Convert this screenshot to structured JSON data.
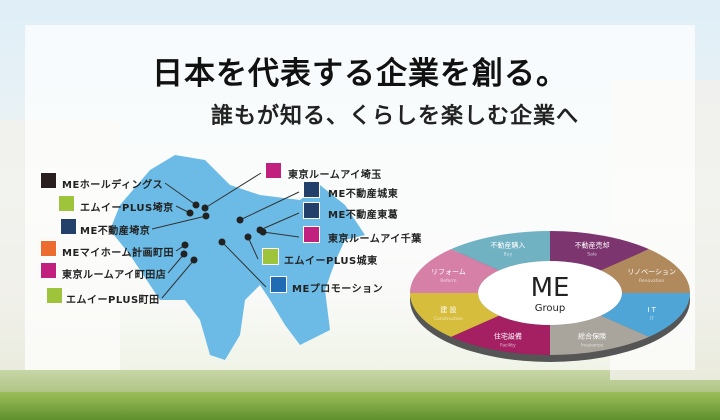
{
  "headline": "日本を代表する企業を創る。",
  "subheadline": "誰もが知る、くらしを楽しむ企業へ",
  "companies": [
    {
      "name": "MEホールディングス",
      "logo_color": "#2a1f1f"
    },
    {
      "name": "エムイーPLUS埼京",
      "logo_color": "#9dc43a"
    },
    {
      "name": "ME不動産埼京",
      "logo_color": "#23406b"
    },
    {
      "name": "MEマイホーム計画町田",
      "logo_color": "#ec6b2f"
    },
    {
      "name": "東京ルームアイ町田店",
      "logo_color": "#c2207f"
    },
    {
      "name": "エムイーPLUS町田",
      "logo_color": "#9dc43a"
    },
    {
      "name": "東京ルームアイ埼玉",
      "logo_color": "#c2207f"
    },
    {
      "name": "ME不動産城東",
      "logo_color": "#23406b"
    },
    {
      "name": "ME不動産東葛",
      "logo_color": "#23406b"
    },
    {
      "name": "東京ルームアイ千葉",
      "logo_color": "#c2207f"
    },
    {
      "name": "エムイーPLUS城東",
      "logo_color": "#9dc43a"
    },
    {
      "name": "MEプロモーション",
      "logo_color": "#1f6bb4"
    }
  ],
  "group": {
    "logo": "ME",
    "logo_sub": "Group",
    "segments": [
      {
        "ja": "不動産売却",
        "en": "Sale",
        "color": "#7d3570"
      },
      {
        "ja": "リノベーション",
        "en": "Renovation",
        "color": "#b08a5c"
      },
      {
        "ja": "I T",
        "en": "IT",
        "color": "#4ea5d6"
      },
      {
        "ja": "総合保険",
        "en": "Insurance",
        "color": "#a9a59c"
      },
      {
        "ja": "住宅設備",
        "en": "Facility",
        "color": "#a51f63"
      },
      {
        "ja": "建 設",
        "en": "Construction",
        "color": "#d7bd3c"
      },
      {
        "ja": "リフォーム",
        "en": "Reform",
        "color": "#d67fa7"
      },
      {
        "ja": "不動産購入",
        "en": "Buy",
        "color": "#70b1c2"
      }
    ]
  },
  "map_color": "#6bbbe6"
}
